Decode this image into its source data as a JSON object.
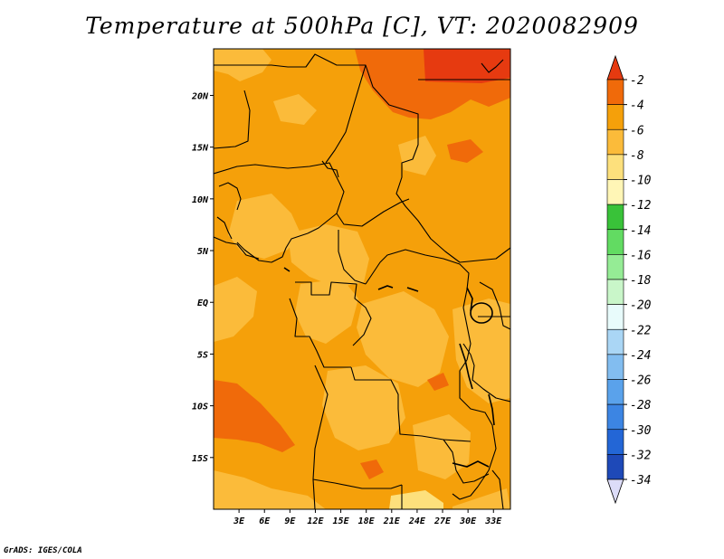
{
  "title": "Temperature at 500hPa [C], VT: 2020082909",
  "credit": "GrADS: IGES/COLA",
  "map": {
    "lon_range": [
      0,
      35
    ],
    "lat_range": [
      -20,
      24.5
    ],
    "lon_ticks": [
      "3E",
      "6E",
      "9E",
      "12E",
      "15E",
      "18E",
      "21E",
      "24E",
      "27E",
      "30E",
      "33E"
    ],
    "lat_ticks": [
      "20N",
      "15N",
      "10N",
      "5N",
      "EQ",
      "5S",
      "10S",
      "15S"
    ],
    "lon_values": [
      3,
      6,
      9,
      12,
      15,
      18,
      21,
      24,
      27,
      30,
      33
    ],
    "lat_values": [
      20,
      15,
      10,
      5,
      0,
      -5,
      -10,
      -15
    ],
    "dominant_range": "-6 to -4"
  },
  "colorbar": {
    "labels": [
      "-2",
      "-4",
      "-6",
      "-8",
      "-10",
      "-12",
      "-14",
      "-16",
      "-18",
      "-20",
      "-22",
      "-24",
      "-26",
      "-28",
      "-30",
      "-32",
      "-34"
    ],
    "colors": [
      "#e63a10",
      "#f06a0a",
      "#f5a00a",
      "#fbbb3a",
      "#fde07c",
      "#fff6b6",
      "#39c239",
      "#62db62",
      "#95ec95",
      "#c9f6c9",
      "#e8fbfb",
      "#aad6f5",
      "#82bdf0",
      "#5aa2eb",
      "#3c85e3",
      "#2366d6",
      "#1e49b8",
      "#10259a",
      "#dcdcf8"
    ]
  }
}
